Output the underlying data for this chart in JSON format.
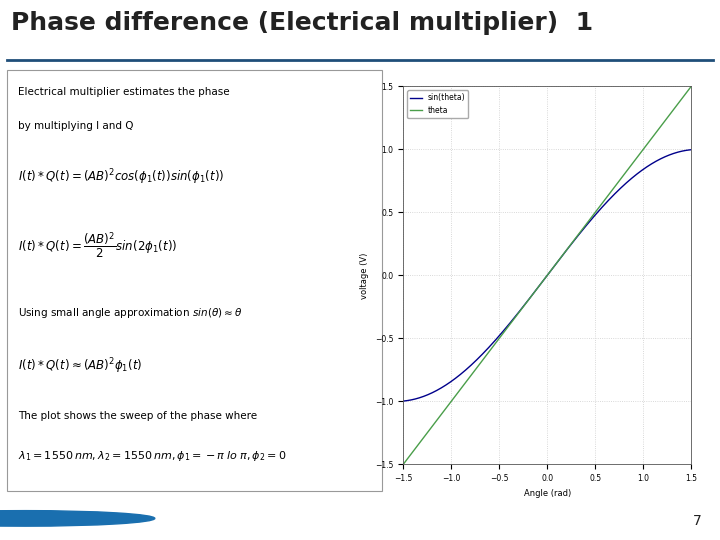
{
  "title": "Phase difference (Electrical multiplier)  1",
  "title_fontsize": 18,
  "title_color": "#222222",
  "bg_color": "#ffffff",
  "header_line_color": "#1f4e79",
  "text_line1": "Electrical multiplier estimates the phase",
  "text_line2": "by multiplying I and Q",
  "plot_xlim": [
    -1.5,
    1.5
  ],
  "plot_ylim": [
    -1.5,
    1.5
  ],
  "plot_xlabel": "Angle (rad)",
  "plot_ylabel": "voltage (V)",
  "plot_legend": [
    "sin(theta)",
    "theta"
  ],
  "sin_color": "#00008B",
  "theta_color": "#4a9e4a",
  "page_number": "7",
  "text_fontsize": 7.5,
  "formula_fontsize": 8.5
}
